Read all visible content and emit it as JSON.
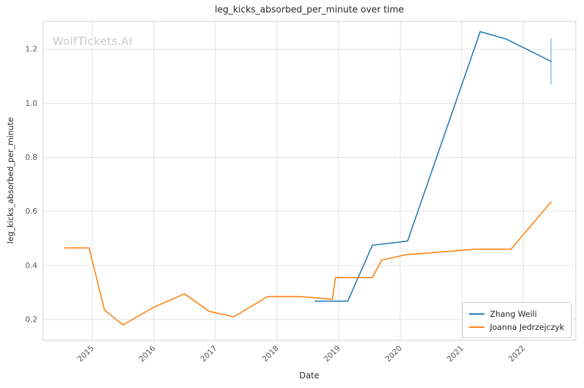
{
  "watermark": "WolfTickets.AI",
  "chart_data": {
    "type": "line",
    "title": "leg_kicks_absorbed_per_minute over time",
    "xlabel": "Date",
    "ylabel": "leg_kicks_absorbed_per_minute",
    "xlim": [
      2014.2,
      2022.85
    ],
    "ylim": [
      0.123,
      1.303
    ],
    "x_ticks": [
      2015,
      2016,
      2017,
      2018,
      2019,
      2020,
      2021,
      2022
    ],
    "y_ticks": [
      0.2,
      0.4,
      0.6,
      0.8,
      1.0,
      1.2
    ],
    "grid": true,
    "grid_color": "#e2e2e2",
    "border_color": "#cfcfcf",
    "legend_position": "lower right",
    "series": [
      {
        "name": "Zhang Weili",
        "color": "#1f77b4",
        "x": [
          2018.62,
          2019.15,
          2019.55,
          2019.75,
          2020.12,
          2021.3,
          2021.72,
          2022.45
        ],
        "y": [
          0.268,
          0.268,
          0.475,
          0.48,
          0.49,
          1.265,
          1.238,
          1.155
        ],
        "error_bar": {
          "x": 2022.45,
          "y_low": 1.07,
          "y_high": 1.24
        }
      },
      {
        "name": "Joanna Jedrzejczyk",
        "color": "#ff7f0e",
        "x": [
          2014.55,
          2014.95,
          2015.2,
          2015.5,
          2016.0,
          2016.5,
          2016.9,
          2017.3,
          2017.85,
          2018.35,
          2018.9,
          2018.95,
          2019.55,
          2019.7,
          2020.1,
          2020.7,
          2021.2,
          2021.8,
          2022.45
        ],
        "y": [
          0.465,
          0.465,
          0.235,
          0.18,
          0.245,
          0.295,
          0.23,
          0.21,
          0.285,
          0.285,
          0.275,
          0.355,
          0.355,
          0.42,
          0.44,
          0.45,
          0.46,
          0.46,
          0.635
        ]
      }
    ]
  }
}
